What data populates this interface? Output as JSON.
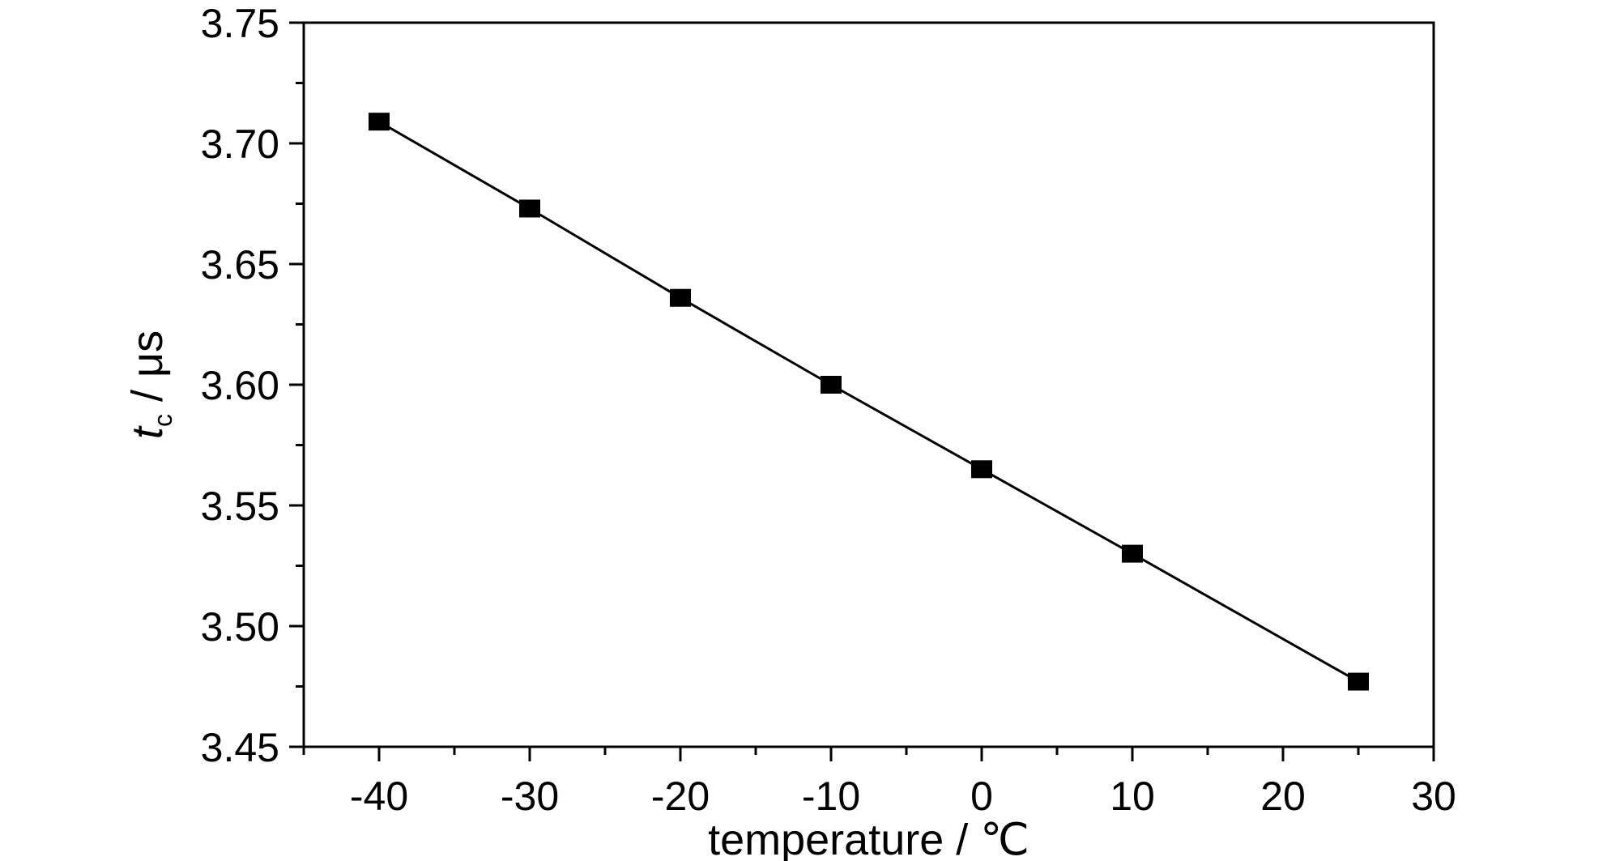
{
  "chart_data": {
    "type": "line",
    "title": "",
    "xlabel": "temperature / ℃",
    "ylabel": {
      "var": "t",
      "sub": "c",
      "unit": " / μs"
    },
    "xlim": [
      -45,
      30
    ],
    "ylim": [
      3.45,
      3.75
    ],
    "x_ticks": [
      -40,
      -30,
      -20,
      -10,
      0,
      10,
      20,
      30
    ],
    "x_tick_labels": [
      "-40",
      "-30",
      "-20",
      "-10",
      "0",
      "10",
      "20",
      "30"
    ],
    "y_ticks": [
      3.45,
      3.5,
      3.55,
      3.6,
      3.65,
      3.7,
      3.75
    ],
    "y_tick_labels": [
      "3.45",
      "3.50",
      "3.55",
      "3.60",
      "3.65",
      "3.70",
      "3.75"
    ],
    "grid": false,
    "series": [
      {
        "x": [
          -40,
          -30,
          -20,
          -10,
          0,
          10,
          25
        ],
        "y": [
          3.709,
          3.673,
          3.636,
          3.6,
          3.565,
          3.53,
          3.477
        ],
        "marker": "square",
        "color": "#000000"
      }
    ]
  }
}
